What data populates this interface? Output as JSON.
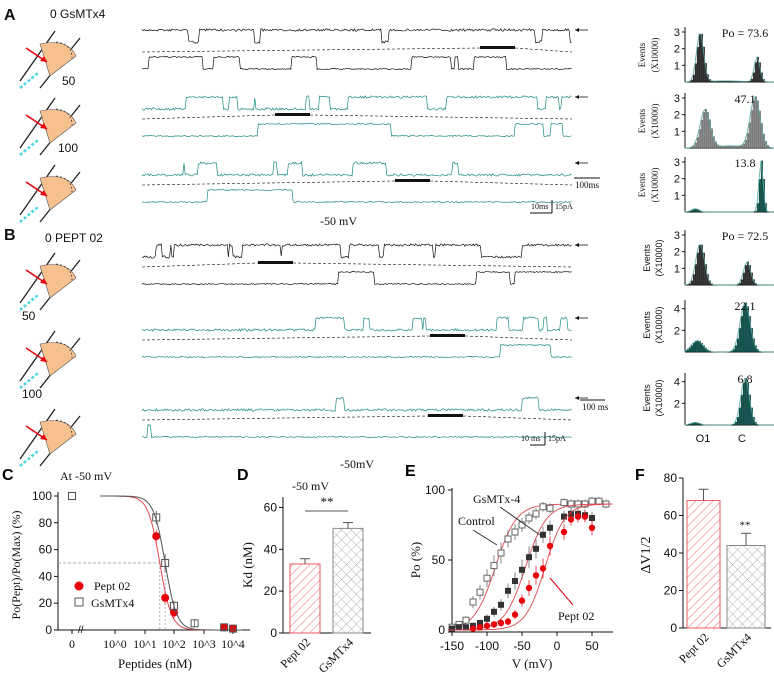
{
  "colors": {
    "black": "#111111",
    "teal": "#1e8c84",
    "red": "#e8000b",
    "gray": "#555555",
    "fitRed": "#e0474f",
    "hist_dark": "#222222",
    "hist_teal": "#0f5e57"
  },
  "panelA": {
    "label": "A",
    "rows": [
      {
        "conc": "0 GsMTx4",
        "color": "black",
        "po_label": "Po = 73.6"
      },
      {
        "conc": "50",
        "color": "teal",
        "po_label": "47.1"
      },
      {
        "conc": "100",
        "color": "teal",
        "po_label": "13.8"
      }
    ],
    "hist_ylabel_1": "Events",
    "hist_ylabel_2": "(X10000)",
    "hist_yticks": [
      "1",
      "2",
      "3"
    ],
    "voltage": "-50 mV",
    "scale_time_long": "100ms",
    "scale_time_short": "10ms",
    "scale_current": "15pA"
  },
  "panelB": {
    "label": "B",
    "rows": [
      {
        "conc": "0 PEPT 02",
        "color": "black",
        "po_label": "Po = 72.5",
        "yticks": [
          "1",
          "2",
          "3"
        ]
      },
      {
        "conc": "50",
        "color": "teal",
        "po_label": "22.1",
        "yticks": [
          "2",
          "4"
        ]
      },
      {
        "conc": "100",
        "color": "teal",
        "po_label": "6.8",
        "yticks": [
          "2",
          "4"
        ]
      }
    ],
    "hist_ylabel_1": "Events",
    "hist_ylabel_2": "(X10000)",
    "hist_xlabels": [
      "O1",
      "C"
    ],
    "voltage": "-50mV",
    "scale_time_long": "100 ms",
    "scale_time_short": "10 ms",
    "scale_current": "15pA"
  },
  "chart_data": [
    {
      "panel": "C",
      "type": "scatter",
      "title": "At -50 mV",
      "xlabel": "Peptides (nM)",
      "ylabel": "Po(Pept)/Po(Max) (%)",
      "xscale": "log",
      "xticks": [
        "0",
        "10^0",
        "10^1",
        "10^2",
        "10^3",
        "10^4"
      ],
      "yticks": [
        "0",
        "20",
        "40",
        "60",
        "80",
        "100"
      ],
      "ylim": [
        0,
        100
      ],
      "legend": [
        "Pept 02",
        "GsMTx4"
      ],
      "legend_position": "lower-left",
      "series": [
        {
          "name": "Pept 02",
          "marker": "filled-circle",
          "color": "red",
          "fit_kd": 33,
          "hill": 2.2,
          "points": [
            {
              "x": 25,
              "y": 70,
              "err": 5
            },
            {
              "x": 50,
              "y": 24,
              "err": 5
            },
            {
              "x": 100,
              "y": 13,
              "err": 4
            },
            {
              "x": 5000,
              "y": 2,
              "err": 1
            },
            {
              "x": 10000,
              "y": 1,
              "err": 1
            }
          ]
        },
        {
          "name": "GsMTx4",
          "marker": "open-square",
          "color": "gray",
          "fit_kd": 50,
          "hill": 2.2,
          "points": [
            {
              "x": 0,
              "y": 100,
              "err": 0
            },
            {
              "x": 25,
              "y": 84,
              "err": 5
            },
            {
              "x": 50,
              "y": 50,
              "err": 7
            },
            {
              "x": 100,
              "y": 18,
              "err": 4
            },
            {
              "x": 500,
              "y": 5,
              "err": 3
            },
            {
              "x": 5000,
              "y": 2,
              "err": 1
            },
            {
              "x": 10000,
              "y": 1,
              "err": 1
            }
          ]
        }
      ]
    },
    {
      "panel": "D",
      "type": "bar",
      "title": "-50 mV",
      "ylabel": "Kd (nM)",
      "ylim": [
        0,
        65
      ],
      "yticks": [
        "0",
        "20",
        "40",
        "60"
      ],
      "categories": [
        "Pept 02",
        "GsMTx4"
      ],
      "values": [
        33,
        50
      ],
      "errors": [
        2.5,
        2.8
      ],
      "significance": "**"
    },
    {
      "panel": "E",
      "type": "scatter",
      "xlabel": "V (mV)",
      "ylabel": "Po (%)",
      "xlim": [
        -155,
        80
      ],
      "ylim": [
        0,
        100
      ],
      "xticks": [
        "-150",
        "-100",
        "-50",
        "0",
        "50"
      ],
      "yticks": [
        "0",
        "50",
        "100"
      ],
      "annotations": [
        "GsMTx-4",
        "Control",
        "Pept 02"
      ],
      "series": [
        {
          "name": "Control",
          "marker": "open-square",
          "v_half": -88,
          "slope": 15,
          "x": [
            -150,
            -140,
            -130,
            -120,
            -110,
            -100,
            -90,
            -80,
            -70,
            -60,
            -50,
            -40,
            -30,
            -20,
            -10,
            10,
            20,
            30,
            40,
            50,
            60,
            70
          ],
          "y": [
            2,
            4,
            7,
            20,
            27,
            37,
            46,
            55,
            65,
            70,
            75,
            80,
            83,
            88,
            87,
            91,
            90,
            90,
            90,
            92,
            92,
            90
          ]
        },
        {
          "name": "GsMTx-4",
          "marker": "filled-square",
          "v_half": -45,
          "slope": 15,
          "x": [
            -150,
            -140,
            -130,
            -120,
            -110,
            -100,
            -90,
            -80,
            -70,
            -60,
            -50,
            -40,
            -30,
            -20,
            -10,
            10,
            20,
            30,
            40,
            50
          ],
          "y": [
            1,
            2,
            2,
            3,
            5,
            8,
            13,
            18,
            28,
            35,
            43,
            52,
            58,
            68,
            73,
            81,
            83,
            83,
            82,
            80
          ]
        },
        {
          "name": "Pept 02",
          "marker": "filled-circle",
          "v_half": -17,
          "slope": 14,
          "x": [
            -120,
            -110,
            -100,
            -90,
            -80,
            -70,
            -60,
            -50,
            -40,
            -30,
            -20,
            -10,
            10,
            20,
            30,
            40,
            50
          ],
          "y": [
            1,
            2,
            3,
            4,
            5,
            6,
            11,
            21,
            30,
            39,
            44,
            60,
            70,
            79,
            81,
            81,
            73
          ]
        }
      ]
    },
    {
      "panel": "F",
      "type": "bar",
      "ylabel": "ΔV1/2",
      "ylim": [
        0,
        80
      ],
      "yticks": [
        "0",
        "20",
        "40",
        "60",
        "80"
      ],
      "categories": [
        "Pept 02",
        "GsMTx4"
      ],
      "values": [
        68,
        44
      ],
      "errors": [
        6,
        6.5
      ],
      "significance": "**"
    }
  ]
}
